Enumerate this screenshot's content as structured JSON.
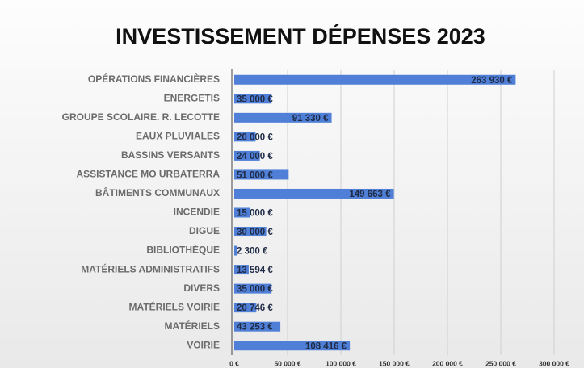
{
  "chart_data": {
    "type": "barh",
    "title": "INVESTISSEMENT DÉPENSES 2023",
    "categories": [
      "OPÉRATIONS FINANCIÈRES",
      "ENERGETIS",
      "GROUPE SCOLAIRE. R. LECOTTE",
      "EAUX PLUVIALES",
      "BASSINS VERSANTS",
      "ASSISTANCE MO URBATERRA",
      "BÂTIMENTS COMMUNAUX",
      "INCENDIE",
      "DIGUE",
      "BIBLIOTHÈQUE",
      "MATÉRIELS ADMINISTRATIFS",
      "DIVERS",
      "MATÉRIELS VOIRIE",
      "MATÉRIELS",
      "VOIRIE"
    ],
    "values": [
      263930,
      35000,
      91330,
      20000,
      24000,
      51000,
      149663,
      15000,
      30000,
      2300,
      13594,
      35000,
      20746,
      43253,
      108416
    ],
    "value_labels": [
      "263 930 €",
      "35 000 €",
      "91 330 €",
      "20 000 €",
      "24 000 €",
      "51 000 €",
      "149 663 €",
      "15 000 €",
      "30 000 €",
      "2 300 €",
      "13 594 €",
      "35 000 €",
      "20 746 €",
      "43 253 €",
      "108 416 €"
    ],
    "color": "#4f7fd6",
    "xlim": [
      0,
      300000
    ],
    "xticks": [
      {
        "value": 0,
        "label": "0 €"
      },
      {
        "value": 50000,
        "label": "50 000 €"
      },
      {
        "value": 100000,
        "label": "100 000 €"
      },
      {
        "value": 150000,
        "label": "150 000 €"
      },
      {
        "value": 200000,
        "label": "200 000 €"
      },
      {
        "value": 250000,
        "label": "250 000 €"
      },
      {
        "value": 300000,
        "label": "300 000 €"
      }
    ],
    "grid": true
  }
}
